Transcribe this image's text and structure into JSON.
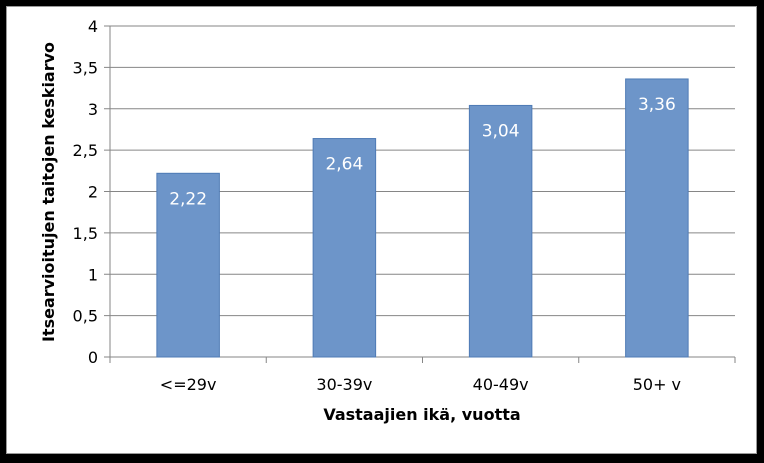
{
  "chart_data": {
    "type": "bar",
    "categories": [
      "<=29v",
      "30-39v",
      "40-49v",
      "50+ v"
    ],
    "values": [
      2.22,
      2.64,
      3.04,
      3.36
    ],
    "data_labels": [
      "2,22",
      "2,64",
      "3,04",
      "3,36"
    ],
    "xlabel": "Vastaajien ikä, vuotta",
    "ylabel": "Itsearvioitujen taitojen keskiarvo",
    "ylim": [
      0,
      4
    ],
    "yticks": [
      "0",
      "0,5",
      "1",
      "1,5",
      "2",
      "2,5",
      "3",
      "3,5",
      "4"
    ],
    "ytick_values": [
      0,
      0.5,
      1,
      1.5,
      2,
      2.5,
      3,
      3.5,
      4
    ],
    "grid": true,
    "legend": "none",
    "colors": {
      "bar_fill": "#6d95c9",
      "bar_stroke": "#4f7bb5",
      "grid": "#868686"
    }
  }
}
